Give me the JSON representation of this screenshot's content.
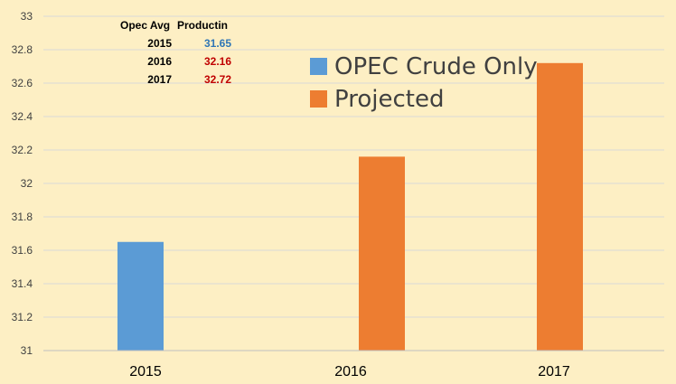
{
  "chart_data": {
    "type": "bar",
    "categories": [
      "2015",
      "2016",
      "2017"
    ],
    "series": [
      {
        "name": "OPEC Crude Only",
        "color": "#5b9bd5",
        "values": [
          31.65,
          null,
          null
        ]
      },
      {
        "name": "Projected",
        "color": "#ed7d31",
        "values": [
          null,
          32.16,
          32.72
        ]
      }
    ],
    "ylim": [
      31,
      33
    ],
    "yticks": [
      "31",
      "31.2",
      "31.4",
      "31.6",
      "31.8",
      "32",
      "32.2",
      "32.4",
      "32.6",
      "32.8",
      "33"
    ],
    "grid": true,
    "legend_placement": "right",
    "annotation_table": {
      "header": [
        "Opec Avg",
        "Productin"
      ],
      "rows": [
        {
          "year": "2015",
          "value": "31.65",
          "color": "#2e75b6"
        },
        {
          "year": "2016",
          "value": "32.16",
          "color": "#c00000"
        },
        {
          "year": "2017",
          "value": "32.72",
          "color": "#c00000"
        }
      ]
    }
  }
}
